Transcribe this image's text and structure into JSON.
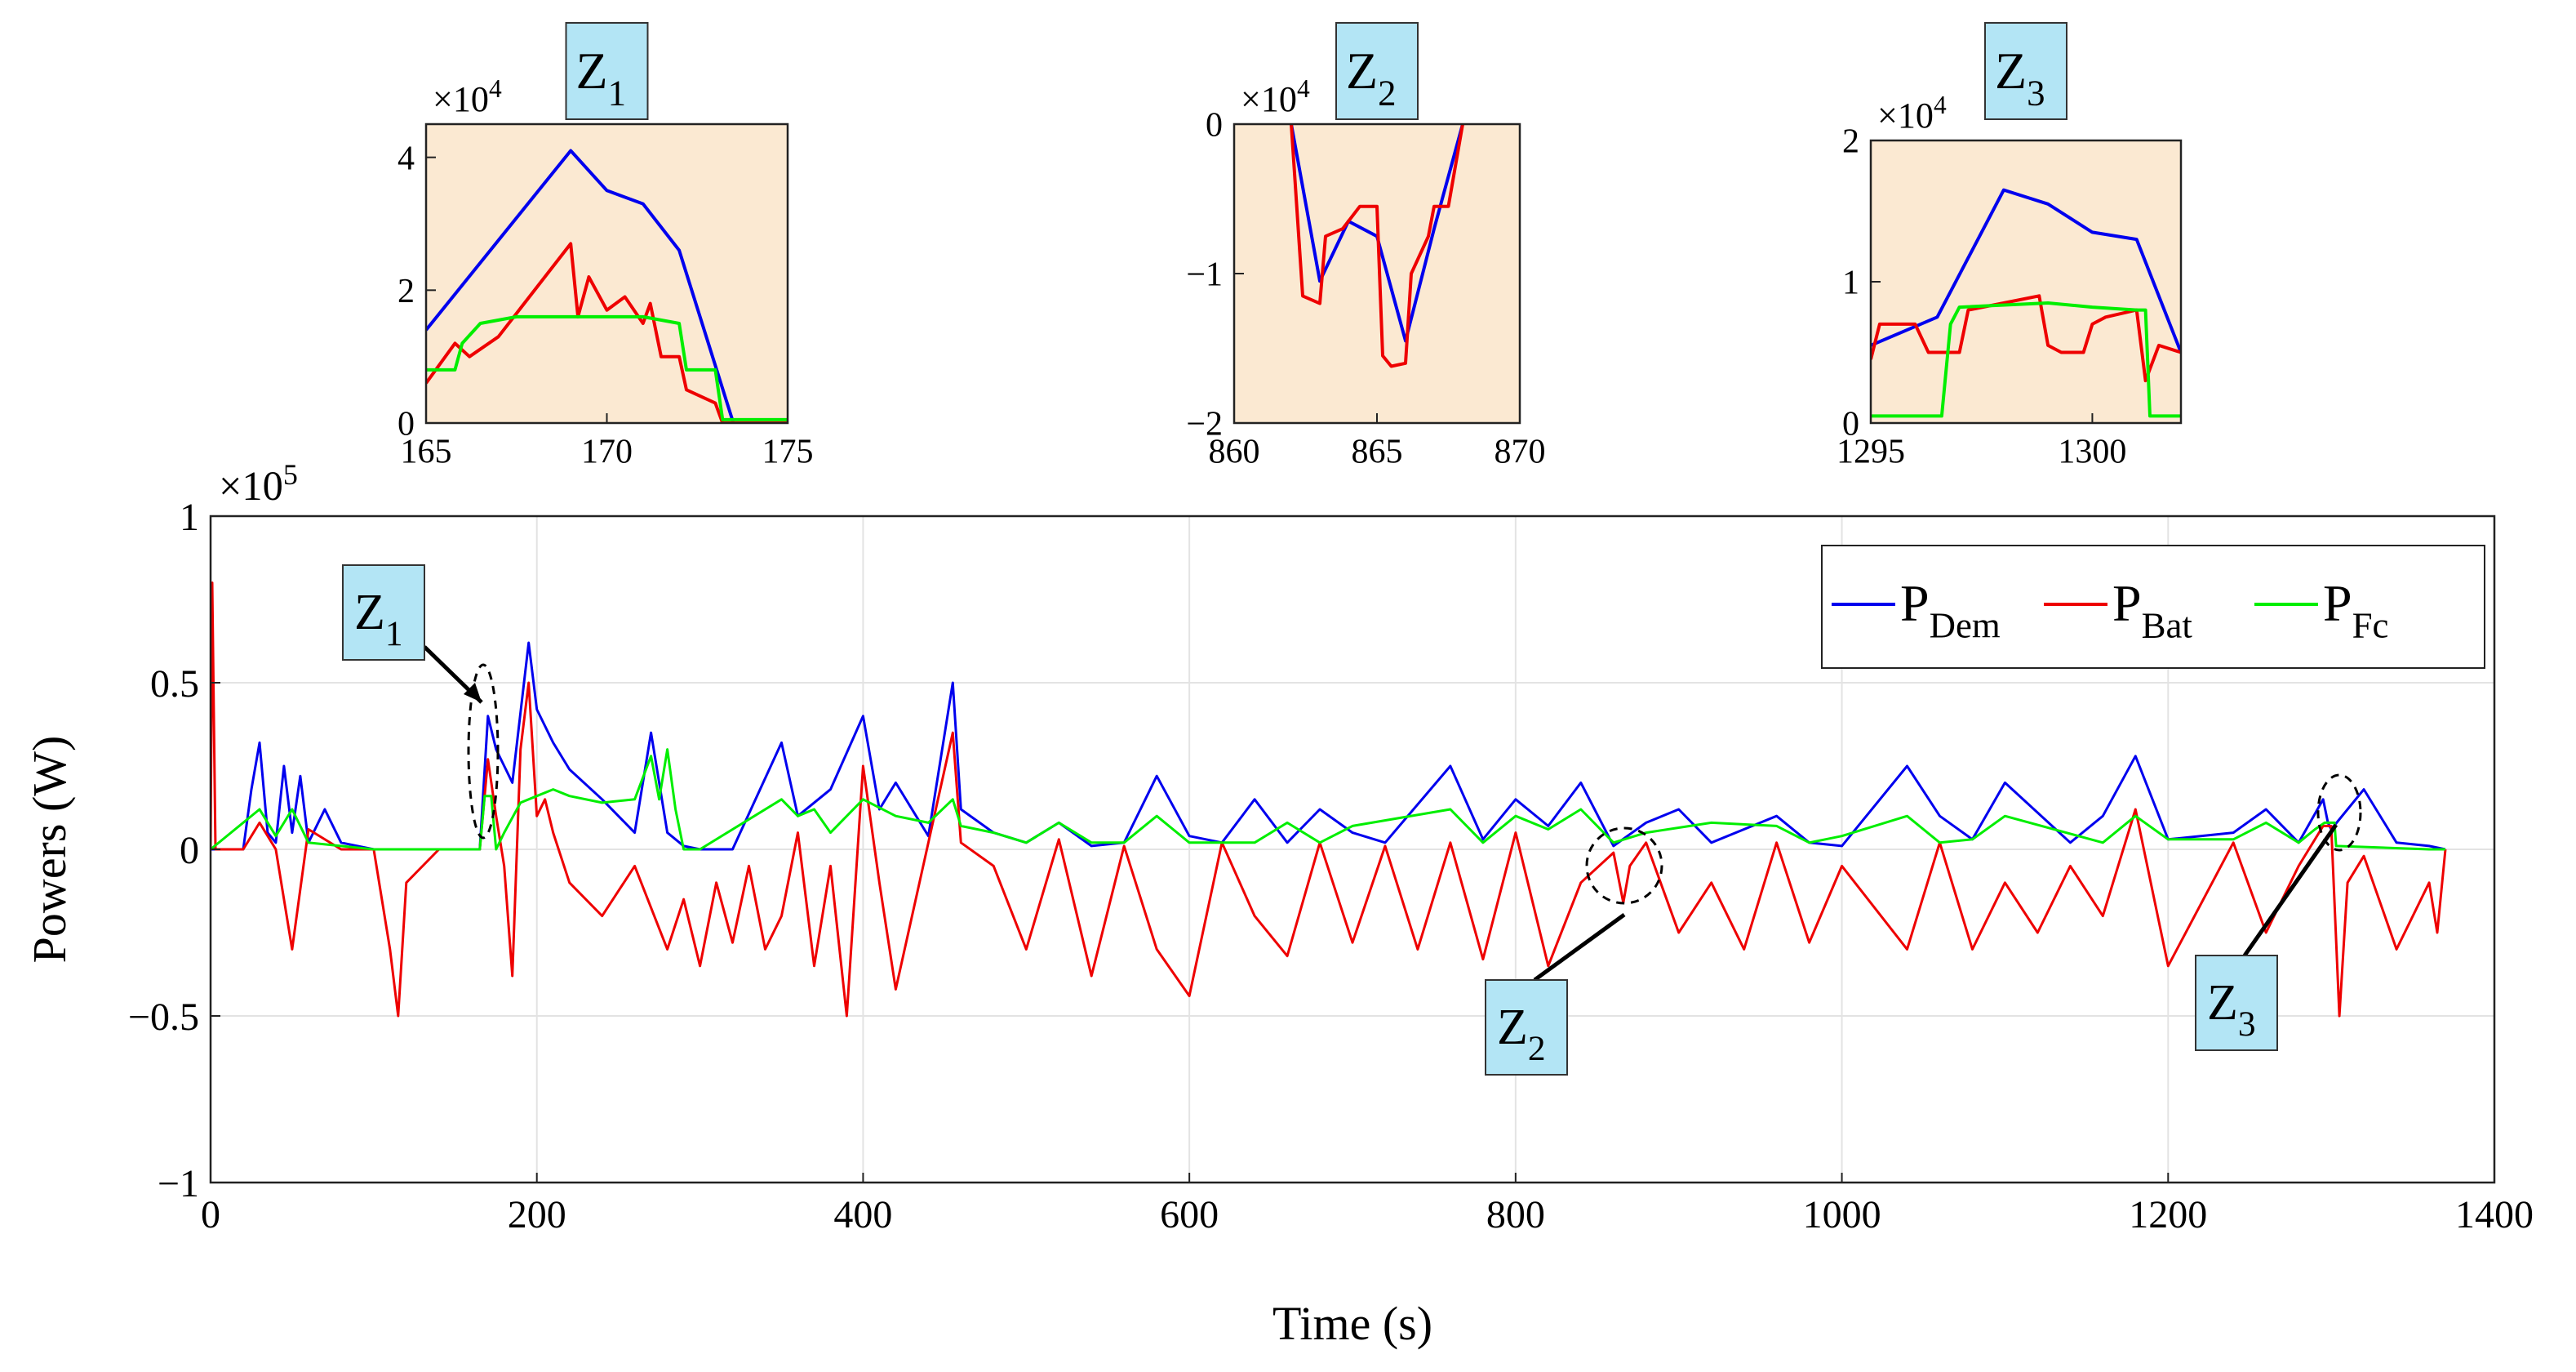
{
  "chart_data": [
    {
      "id": "main",
      "type": "line",
      "title": "",
      "xlabel": "Time (s)",
      "ylabel": "Powers (W)",
      "xlim": [
        0,
        1400
      ],
      "ylim": [
        -1,
        1
      ],
      "y_exponent": "×10",
      "y_exponent_power": "5",
      "xticks": [
        "0",
        "200",
        "400",
        "600",
        "800",
        "1000",
        "1200",
        "1400"
      ],
      "yticks": [
        "−1",
        "−0.5",
        "0",
        "0.5",
        "1"
      ],
      "grid": true,
      "legend_position": "top-right",
      "series": [
        {
          "name": "P",
          "sub": "Dem",
          "color": "#0000ee",
          "x": [
            0,
            20,
            25,
            30,
            35,
            40,
            45,
            50,
            55,
            60,
            70,
            80,
            100,
            120,
            140,
            165,
            170,
            175,
            185,
            195,
            200,
            210,
            220,
            240,
            260,
            270,
            280,
            290,
            300,
            320,
            350,
            360,
            380,
            400,
            410,
            420,
            440,
            455,
            460,
            480,
            500,
            520,
            540,
            560,
            580,
            600,
            620,
            640,
            660,
            680,
            700,
            720,
            760,
            780,
            800,
            820,
            840,
            860,
            880,
            900,
            920,
            960,
            980,
            1000,
            1040,
            1060,
            1080,
            1100,
            1140,
            1160,
            1180,
            1200,
            1240,
            1260,
            1280,
            1295,
            1298,
            1300,
            1320,
            1340,
            1360,
            1370
          ],
          "y": [
            0,
            0,
            0.18,
            0.32,
            0.05,
            0.02,
            0.25,
            0.05,
            0.22,
            0.02,
            0.12,
            0.02,
            0,
            0,
            0,
            0,
            0.4,
            0.3,
            0.2,
            0.62,
            0.42,
            0.32,
            0.24,
            0.15,
            0.05,
            0.35,
            0.05,
            0.01,
            0,
            0,
            0.32,
            0.1,
            0.18,
            0.4,
            0.12,
            0.2,
            0.04,
            0.5,
            0.12,
            0.05,
            0.02,
            0.08,
            0.01,
            0.02,
            0.22,
            0.04,
            0.02,
            0.15,
            0.02,
            0.12,
            0.05,
            0.02,
            0.25,
            0.03,
            0.15,
            0.07,
            0.2,
            0.01,
            0.08,
            0.12,
            0.02,
            0.1,
            0.02,
            0.01,
            0.25,
            0.1,
            0.03,
            0.2,
            0.02,
            0.1,
            0.28,
            0.03,
            0.05,
            0.12,
            0.02,
            0.15,
            0.08,
            0.06,
            0.18,
            0.02,
            0.01,
            0
          ]
        },
        {
          "name": "P",
          "sub": "Bat",
          "color": "#ee0000",
          "x": [
            0,
            1,
            3,
            5,
            20,
            30,
            40,
            50,
            60,
            80,
            100,
            110,
            115,
            120,
            140,
            165,
            170,
            175,
            180,
            185,
            190,
            195,
            200,
            205,
            210,
            220,
            240,
            260,
            280,
            290,
            300,
            310,
            320,
            330,
            340,
            350,
            360,
            370,
            380,
            390,
            400,
            410,
            420,
            440,
            455,
            460,
            480,
            500,
            520,
            540,
            560,
            580,
            600,
            620,
            640,
            660,
            680,
            700,
            720,
            740,
            760,
            780,
            800,
            820,
            840,
            860,
            866,
            870,
            880,
            900,
            920,
            940,
            960,
            980,
            1000,
            1040,
            1060,
            1080,
            1100,
            1120,
            1140,
            1160,
            1180,
            1200,
            1240,
            1260,
            1280,
            1295,
            1300,
            1305,
            1310,
            1320,
            1340,
            1360,
            1365,
            1370
          ],
          "y": [
            0,
            0.8,
            0,
            0,
            0,
            0.08,
            0,
            -0.3,
            0.06,
            0,
            0,
            -0.3,
            -0.5,
            -0.1,
            0,
            0,
            0.27,
            0.1,
            -0.05,
            -0.38,
            0.3,
            0.5,
            0.1,
            0.15,
            0.05,
            -0.1,
            -0.2,
            -0.05,
            -0.3,
            -0.15,
            -0.35,
            -0.1,
            -0.28,
            -0.05,
            -0.3,
            -0.2,
            0.05,
            -0.35,
            -0.05,
            -0.5,
            0.25,
            -0.1,
            -0.42,
            0.02,
            0.35,
            0.02,
            -0.05,
            -0.3,
            0.03,
            -0.38,
            0.01,
            -0.3,
            -0.44,
            0.02,
            -0.2,
            -0.32,
            0.02,
            -0.28,
            0.01,
            -0.3,
            0.02,
            -0.33,
            0.05,
            -0.35,
            -0.1,
            -0.01,
            -0.16,
            -0.05,
            0.02,
            -0.25,
            -0.1,
            -0.3,
            0.02,
            -0.28,
            -0.05,
            -0.3,
            0.02,
            -0.3,
            -0.1,
            -0.25,
            -0.05,
            -0.2,
            0.12,
            -0.35,
            0.02,
            -0.25,
            -0.05,
            0.07,
            0.07,
            -0.5,
            -0.1,
            -0.02,
            -0.3,
            -0.1,
            -0.25,
            0
          ]
        },
        {
          "name": "P",
          "sub": "Fc",
          "color": "#00ee00",
          "x": [
            0,
            30,
            40,
            50,
            60,
            100,
            140,
            165,
            168,
            172,
            175,
            180,
            190,
            200,
            210,
            220,
            240,
            260,
            270,
            275,
            280,
            285,
            290,
            300,
            350,
            360,
            370,
            380,
            400,
            420,
            440,
            455,
            460,
            480,
            500,
            520,
            540,
            560,
            580,
            600,
            640,
            660,
            680,
            700,
            760,
            780,
            800,
            820,
            840,
            860,
            880,
            920,
            960,
            980,
            1000,
            1040,
            1060,
            1080,
            1100,
            1160,
            1180,
            1200,
            1240,
            1260,
            1280,
            1290,
            1296,
            1300,
            1302,
            1303,
            1360,
            1370
          ],
          "y": [
            0,
            0.12,
            0.04,
            0.12,
            0.02,
            0,
            0,
            0,
            0.16,
            0.16,
            0,
            0.05,
            0.14,
            0.16,
            0.18,
            0.16,
            0.14,
            0.15,
            0.28,
            0.15,
            0.3,
            0.12,
            0,
            0,
            0.15,
            0.1,
            0.12,
            0.05,
            0.15,
            0.1,
            0.08,
            0.15,
            0.07,
            0.05,
            0.02,
            0.08,
            0.02,
            0.02,
            0.1,
            0.02,
            0.02,
            0.08,
            0.02,
            0.07,
            0.12,
            0.02,
            0.1,
            0.06,
            0.12,
            0.02,
            0.05,
            0.08,
            0.07,
            0.02,
            0.04,
            0.1,
            0.02,
            0.03,
            0.1,
            0.02,
            0.1,
            0.03,
            0.03,
            0.08,
            0.02,
            0.06,
            0.08,
            0.08,
            0.08,
            0.01,
            0,
            0
          ]
        }
      ],
      "annotations": [
        {
          "label": "Z",
          "sub": "1",
          "x": 170,
          "y": 0.15
        },
        {
          "label": "Z",
          "sub": "2",
          "x": 865,
          "y": -0.1
        },
        {
          "label": "Z",
          "sub": "3",
          "x": 1300,
          "y": 0.05
        }
      ]
    },
    {
      "id": "inset1",
      "type": "line",
      "title": "Z",
      "title_sub": "1",
      "xlim": [
        165,
        175
      ],
      "ylim": [
        0,
        4.5
      ],
      "y_exponent": "×10",
      "y_exponent_power": "4",
      "xticks": [
        "165",
        "170",
        "175"
      ],
      "yticks": [
        "0",
        "2",
        "4"
      ],
      "series": [
        {
          "name": "P",
          "sub": "Dem",
          "color": "#0000ee",
          "x": [
            165,
            169,
            170,
            171,
            172,
            173.5,
            175
          ],
          "y": [
            1.4,
            4.1,
            3.5,
            3.3,
            2.6,
            0,
            0
          ]
        },
        {
          "name": "P",
          "sub": "Bat",
          "color": "#ee0000",
          "x": [
            165,
            165.8,
            166.2,
            167,
            169,
            169.2,
            169.5,
            170,
            170.5,
            171,
            171.2,
            171.5,
            172,
            172.2,
            173,
            173.2,
            175
          ],
          "y": [
            0.6,
            1.2,
            1.0,
            1.3,
            2.7,
            1.6,
            2.2,
            1.7,
            1.9,
            1.5,
            1.8,
            1.0,
            1.0,
            0.5,
            0.3,
            0,
            0
          ]
        },
        {
          "name": "P",
          "sub": "Fc",
          "color": "#00ee00",
          "x": [
            165,
            165.8,
            166,
            166.5,
            167.5,
            171,
            172,
            172.2,
            173,
            173.2,
            175
          ],
          "y": [
            0.8,
            0.8,
            1.2,
            1.5,
            1.6,
            1.6,
            1.5,
            0.8,
            0.8,
            0.05,
            0.05
          ]
        }
      ]
    },
    {
      "id": "inset2",
      "type": "line",
      "title": "Z",
      "title_sub": "2",
      "xlim": [
        860,
        870
      ],
      "ylim": [
        -2,
        0
      ],
      "y_exponent": "×10",
      "y_exponent_power": "4",
      "xticks": [
        "860",
        "865",
        "870"
      ],
      "yticks": [
        "−2",
        "−1",
        "0"
      ],
      "series": [
        {
          "name": "P",
          "sub": "Dem",
          "color": "#0000ee",
          "x": [
            862,
            863,
            864,
            865,
            866,
            867,
            868
          ],
          "y": [
            0,
            -1.05,
            -0.65,
            -0.75,
            -1.45,
            -0.7,
            0
          ]
        },
        {
          "name": "P",
          "sub": "Bat",
          "color": "#ee0000",
          "x": [
            862,
            862.4,
            863,
            863.2,
            863.8,
            864.4,
            864.6,
            865,
            865.2,
            865.5,
            866,
            866.2,
            866.8,
            867,
            867.5,
            868
          ],
          "y": [
            0,
            -1.15,
            -1.2,
            -0.75,
            -0.7,
            -0.55,
            -0.55,
            -0.55,
            -1.55,
            -1.62,
            -1.6,
            -1.0,
            -0.75,
            -0.55,
            -0.55,
            0
          ]
        }
      ]
    },
    {
      "id": "inset3",
      "type": "line",
      "title": "Z",
      "title_sub": "3",
      "xlim": [
        1295,
        1302
      ],
      "ylim": [
        0,
        2
      ],
      "y_exponent": "×10",
      "y_exponent_power": "4",
      "xticks": [
        "1295",
        "1300"
      ],
      "yticks": [
        "0",
        "1",
        "2"
      ],
      "series": [
        {
          "name": "P",
          "sub": "Dem",
          "color": "#0000ee",
          "x": [
            1295,
            1296.5,
            1298,
            1299,
            1300,
            1301,
            1302
          ],
          "y": [
            0.55,
            0.75,
            1.65,
            1.55,
            1.35,
            1.3,
            0.5
          ]
        },
        {
          "name": "P",
          "sub": "Bat",
          "color": "#ee0000",
          "x": [
            1295,
            1295.2,
            1296,
            1296.3,
            1297,
            1297.2,
            1298,
            1298.8,
            1299,
            1299.3,
            1299.8,
            1300,
            1300.3,
            1301,
            1301.2,
            1301.5,
            1302
          ],
          "y": [
            0.45,
            0.7,
            0.7,
            0.5,
            0.5,
            0.8,
            0.85,
            0.9,
            0.55,
            0.5,
            0.5,
            0.7,
            0.75,
            0.8,
            0.3,
            0.55,
            0.5
          ]
        },
        {
          "name": "P",
          "sub": "Fc",
          "color": "#00ee00",
          "x": [
            1295,
            1296.6,
            1296.8,
            1297,
            1299,
            1300,
            1301,
            1301.2,
            1301.3,
            1302
          ],
          "y": [
            0.05,
            0.05,
            0.7,
            0.82,
            0.85,
            0.82,
            0.8,
            0.8,
            0.05,
            0.05
          ]
        }
      ]
    }
  ]
}
